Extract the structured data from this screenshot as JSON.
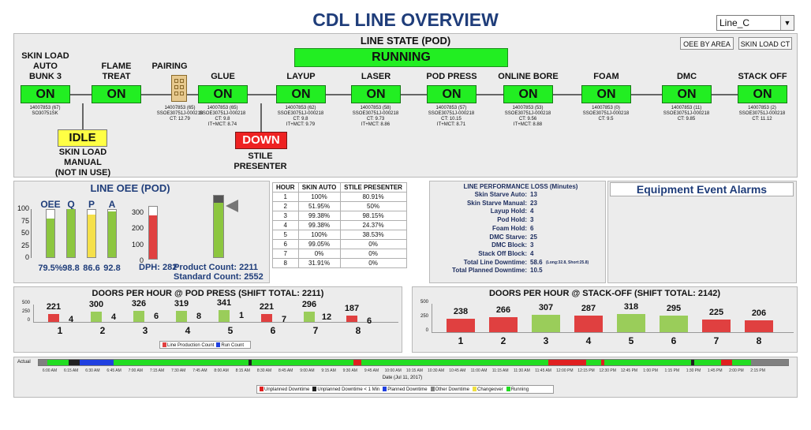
{
  "header": {
    "title": "CDL LINE OVERVIEW",
    "line_select": "Line_C",
    "btn_oee_by_area": "OEE BY AREA",
    "btn_skin_load_ct": "SKIN LOAD CT"
  },
  "line_state": {
    "title": "LINE STATE (POD)",
    "status": "RUNNING"
  },
  "stations": [
    {
      "name": "SKIN LOAD\nAUTO\nBUNK 3",
      "status": "ON",
      "info": "14007853 (67)\nSO30751SK"
    },
    {
      "name": "FLAME\nTREAT",
      "status": "ON",
      "info": ""
    },
    {
      "name": "GLUE",
      "status": "ON",
      "info": "14007853 (65)\nSSOE30751J-000218\nCT: 9.8\nIT+MCT: 8.74"
    },
    {
      "name": "LAYUP",
      "status": "ON",
      "info": "14007853 (62)\nSSOE30751J-000218\nCT: 9.8\nIT+MCT: 9.79"
    },
    {
      "name": "LASER",
      "status": "ON",
      "info": "14007853 (58)\nSSOE30751J-000218\nCT: 9.73\nIT+MCT: 8.86"
    },
    {
      "name": "POD PRESS",
      "status": "ON",
      "info": "14007853 (57)\nSSOE30751J-000218\nCT: 10.15\nIT+MCT: 8.71"
    },
    {
      "name": "ONLINE BORE",
      "status": "ON",
      "info": "14007853 (53)\nSSOE30751J-000218\nCT: 9.56\nIT+MCT: 8.88"
    },
    {
      "name": "FOAM",
      "status": "ON",
      "info": "14007853 (0)\nSSOE30751J-000218\nCT: 9.5"
    },
    {
      "name": "DMC",
      "status": "ON",
      "info": "14007853 (11)\nSSOE30751J-000218\nCT: 9.85"
    },
    {
      "name": "STACK OFF",
      "status": "ON",
      "info": "14007853 (2)\nSSOE30751J-000218\nCT: 11.12"
    }
  ],
  "pairing": {
    "name": "PAIRING",
    "info": "14007853 (65)\nSSOE30751J-000218\nCT: 12.79"
  },
  "skin_load_manual": {
    "status": "IDLE",
    "name": "SKIN LOAD\nMANUAL\n(NOT IN USE)"
  },
  "stile_presenter": {
    "status": "DOWN",
    "name": "STILE\nPRESENTER"
  },
  "line_oee": {
    "title": "LINE OEE (POD)",
    "bars": [
      {
        "label": "OEE",
        "value": 79.5,
        "display": "79.5%",
        "color": "#8cc63f"
      },
      {
        "label": "Q",
        "value": 98.8,
        "display": "98.8",
        "color": "#8cc63f"
      },
      {
        "label": "P",
        "value": 86.6,
        "display": "86.6",
        "color": "#f5e04a"
      },
      {
        "label": "A",
        "value": 92.8,
        "display": "92.8",
        "color": "#8cc63f"
      }
    ],
    "y_ticks": [
      "100",
      "75",
      "50",
      "25",
      "0"
    ],
    "dph": {
      "label": "DPH:",
      "value": 282,
      "max": 350,
      "ticks": [
        "300",
        "200",
        "100",
        "0"
      ],
      "color": "#e04040"
    },
    "product_count_label": "Product Count:",
    "product_count": "2211",
    "standard_count_label": "Standard Count:",
    "standard_count": "2552",
    "progress": {
      "value": 2211,
      "max": 2552
    }
  },
  "hour_table": {
    "headers": [
      "HOUR",
      "SKIN AUTO",
      "STILE PRESENTER"
    ],
    "rows": [
      [
        "1",
        "100%",
        "80.91%"
      ],
      [
        "2",
        "51.95%",
        "50%"
      ],
      [
        "3",
        "99.38%",
        "98.15%"
      ],
      [
        "4",
        "99.38%",
        "24.37%"
      ],
      [
        "5",
        "100%",
        "38.53%"
      ],
      [
        "6",
        "99.05%",
        "0%"
      ],
      [
        "7",
        "0%",
        "0%"
      ],
      [
        "8",
        "31.91%",
        "0%"
      ]
    ]
  },
  "performance_loss": {
    "title": "LINE PERFORMANCE LOSS (Minutes)",
    "items": [
      {
        "label": "Skin Starve Auto:",
        "value": "13"
      },
      {
        "label": "Skin Starve Manual:",
        "value": "23"
      },
      {
        "label": "Layup Hold:",
        "value": "4"
      },
      {
        "label": "Pod Hold:",
        "value": "3"
      },
      {
        "label": "Foam Hold:",
        "value": "6"
      },
      {
        "label": "DMC Starve:",
        "value": "25"
      },
      {
        "label": "DMC Block:",
        "value": "3"
      },
      {
        "label": "Stack Off Block:",
        "value": "4"
      },
      {
        "label": "Total Line Downtime:",
        "value": "58.6",
        "note": "(Long:32.8, Short:25.8)"
      },
      {
        "label": "Total Planned Downtime:",
        "value": "10.5"
      }
    ]
  },
  "alarms": {
    "title": "Equipment Event Alarms"
  },
  "chart_data": [
    {
      "type": "bar",
      "title": "DOORS PER HOUR @ POD PRESS (SHIFT TOTAL: 2211)",
      "categories": [
        "1",
        "2",
        "3",
        "4",
        "5",
        "6",
        "7",
        "8"
      ],
      "series": [
        {
          "name": "Line Production Count",
          "values": [
            221,
            300,
            326,
            319,
            341,
            221,
            296,
            187
          ],
          "colors": [
            "#e04040",
            "#9acd5a",
            "#9acd5a",
            "#9acd5a",
            "#9acd5a",
            "#e04040",
            "#9acd5a",
            "#e04040"
          ]
        },
        {
          "name": "Run Count",
          "values": [
            4,
            4,
            6,
            8,
            1,
            7,
            12,
            6
          ]
        }
      ],
      "y_ticks": [
        "500",
        "250",
        "0"
      ],
      "ylim": [
        0,
        500
      ],
      "legend": "bottom"
    },
    {
      "type": "bar",
      "title": "DOORS PER HOUR @ STACK-OFF (SHIFT TOTAL: 2142)",
      "categories": [
        "1",
        "2",
        "3",
        "4",
        "5",
        "6",
        "7",
        "8"
      ],
      "series": [
        {
          "values": [
            238,
            266,
            307,
            287,
            318,
            295,
            225,
            206
          ],
          "colors": [
            "#e04040",
            "#e04040",
            "#9acd5a",
            "#e04040",
            "#9acd5a",
            "#9acd5a",
            "#e04040",
            "#e04040"
          ]
        }
      ],
      "y_ticks": [
        "500",
        "250",
        "0"
      ],
      "ylim": [
        0,
        500
      ]
    }
  ],
  "timeline": {
    "label": "Actual",
    "xlabel": "Date (Jul 11, 2017)",
    "times": [
      "6:00 AM",
      "6:15 AM",
      "6:30 AM",
      "6:45 AM",
      "7:00 AM",
      "7:15 AM",
      "7:30 AM",
      "7:45 AM",
      "8:00 AM",
      "8:15 AM",
      "8:30 AM",
      "8:45 AM",
      "9:00 AM",
      "9:15 AM",
      "9:30 AM",
      "9:45 AM",
      "10:00 AM",
      "10:15 AM",
      "10:30 AM",
      "10:45 AM",
      "11:00 AM",
      "11:15 AM",
      "11:30 AM",
      "11:45 AM",
      "12:00 PM",
      "12:15 PM",
      "12:30 PM",
      "12:45 PM",
      "1:00 PM",
      "1:15 PM",
      "1:30 PM",
      "1:45 PM",
      "2:00 PM",
      "2:15 PM"
    ],
    "segments": [
      {
        "start": 0,
        "end": 0.012,
        "state": "Other Downtime"
      },
      {
        "start": 0.012,
        "end": 0.04,
        "state": "Running"
      },
      {
        "start": 0.04,
        "end": 0.055,
        "state": "Unplanned Downtime < 1 Min"
      },
      {
        "start": 0.055,
        "end": 0.07,
        "state": "Planned Downtime"
      },
      {
        "start": 0.07,
        "end": 0.1,
        "state": "Planned Downtime"
      },
      {
        "start": 0.1,
        "end": 0.28,
        "state": "Running"
      },
      {
        "start": 0.28,
        "end": 0.284,
        "state": "Unplanned Downtime < 1 Min"
      },
      {
        "start": 0.284,
        "end": 0.42,
        "state": "Running"
      },
      {
        "start": 0.42,
        "end": 0.43,
        "state": "Unplanned Downtime"
      },
      {
        "start": 0.43,
        "end": 0.68,
        "state": "Running"
      },
      {
        "start": 0.68,
        "end": 0.7,
        "state": "Unplanned Downtime"
      },
      {
        "start": 0.7,
        "end": 0.73,
        "state": "Unplanned Downtime"
      },
      {
        "start": 0.73,
        "end": 0.75,
        "state": "Running"
      },
      {
        "start": 0.75,
        "end": 0.755,
        "state": "Unplanned Downtime"
      },
      {
        "start": 0.755,
        "end": 0.87,
        "state": "Running"
      },
      {
        "start": 0.87,
        "end": 0.875,
        "state": "Unplanned Downtime < 1 Min"
      },
      {
        "start": 0.875,
        "end": 0.91,
        "state": "Running"
      },
      {
        "start": 0.91,
        "end": 0.925,
        "state": "Unplanned Downtime"
      },
      {
        "start": 0.925,
        "end": 0.95,
        "state": "Running"
      },
      {
        "start": 0.95,
        "end": 1.0,
        "state": "Other Downtime"
      }
    ],
    "legend": [
      {
        "label": "Unplanned Downtime",
        "color": "#e02020"
      },
      {
        "label": "Unplanned Downtime < 1 Min",
        "color": "#202020"
      },
      {
        "label": "Planned Downtime",
        "color": "#2040e0"
      },
      {
        "label": "Other Downtime",
        "color": "#808080"
      },
      {
        "label": "Changeover",
        "color": "#f0e040"
      },
      {
        "label": "Running",
        "color": "#22dd22"
      }
    ]
  }
}
